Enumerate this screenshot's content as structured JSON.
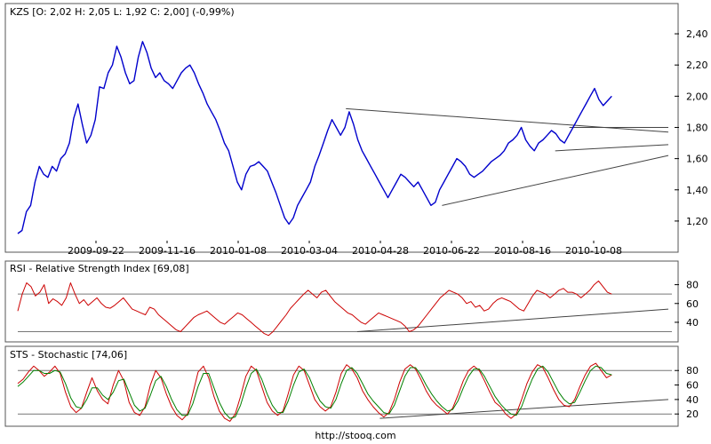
{
  "footer": "http://stooq.com",
  "chart_data": [
    {
      "type": "line",
      "title": "KZS [O: 2,02  H: 2,05  L: 1,92  C: 2,00] (-0,99%)",
      "ylim": [
        1.08,
        2.48
      ],
      "y_ticks": [
        "2,40",
        "2,20",
        "2,00",
        "1,80",
        "1,60",
        "1,40",
        "1,20"
      ],
      "y_tick_values": [
        2.4,
        2.2,
        2.0,
        1.8,
        1.6,
        1.4,
        1.2
      ],
      "x_ticks": [
        "2009-09-22",
        "2009-11-16",
        "2010-01-08",
        "2010-03-04",
        "2010-04-28",
        "2010-06-22",
        "2010-08-16",
        "2010-10-08"
      ],
      "x_tick_index": [
        25,
        45,
        65,
        85,
        105,
        125,
        145,
        165
      ],
      "series": [
        {
          "color": "#0000cc",
          "values": [
            1.12,
            1.14,
            1.26,
            1.3,
            1.45,
            1.55,
            1.5,
            1.48,
            1.55,
            1.52,
            1.6,
            1.63,
            1.7,
            1.86,
            1.95,
            1.82,
            1.7,
            1.75,
            1.85,
            2.06,
            2.05,
            2.15,
            2.2,
            2.32,
            2.25,
            2.15,
            2.08,
            2.1,
            2.25,
            2.35,
            2.28,
            2.18,
            2.12,
            2.15,
            2.1,
            2.08,
            2.05,
            2.1,
            2.15,
            2.18,
            2.2,
            2.15,
            2.08,
            2.02,
            1.95,
            1.9,
            1.85,
            1.78,
            1.7,
            1.65,
            1.55,
            1.45,
            1.4,
            1.5,
            1.55,
            1.56,
            1.58,
            1.55,
            1.52,
            1.45,
            1.38,
            1.3,
            1.22,
            1.18,
            1.22,
            1.3,
            1.35,
            1.4,
            1.45,
            1.55,
            1.62,
            1.7,
            1.78,
            1.85,
            1.8,
            1.75,
            1.8,
            1.9,
            1.82,
            1.72,
            1.65,
            1.6,
            1.55,
            1.5,
            1.45,
            1.4,
            1.35,
            1.4,
            1.45,
            1.5,
            1.48,
            1.45,
            1.42,
            1.45,
            1.4,
            1.35,
            1.3,
            1.32,
            1.4,
            1.45,
            1.5,
            1.55,
            1.6,
            1.58,
            1.55,
            1.5,
            1.48,
            1.5,
            1.52,
            1.55,
            1.58,
            1.6,
            1.62,
            1.65,
            1.7,
            1.72,
            1.75,
            1.8,
            1.72,
            1.68,
            1.65,
            1.7,
            1.72,
            1.75,
            1.78,
            1.76,
            1.72,
            1.7,
            1.75,
            1.8,
            1.85,
            1.9,
            1.95,
            2.0,
            2.05,
            1.98,
            1.94,
            1.97,
            2.0
          ]
        }
      ],
      "trend_lines": [
        {
          "from": [
            116,
            1.92
          ],
          "to": [
            230,
            1.77
          ]
        },
        {
          "from": [
            190,
            1.65
          ],
          "to": [
            230,
            1.69
          ]
        },
        {
          "from": [
            150,
            1.3
          ],
          "to": [
            230,
            1.62
          ]
        },
        {
          "from": [
            195,
            1.8
          ],
          "to": [
            230,
            1.8
          ]
        }
      ]
    },
    {
      "type": "line",
      "title": "RSI - Relative Strength Index [69,08]",
      "ylim": [
        22,
        90
      ],
      "y_ticks": [
        "80",
        "60",
        "40"
      ],
      "y_tick_values": [
        80,
        60,
        40
      ],
      "hlines": [
        70,
        30
      ],
      "series": [
        {
          "color": "#cc0000",
          "values": [
            52,
            70,
            82,
            78,
            68,
            72,
            80,
            60,
            65,
            62,
            58,
            66,
            82,
            70,
            60,
            64,
            58,
            62,
            66,
            60,
            56,
            55,
            58,
            62,
            66,
            60,
            54,
            52,
            50,
            48,
            56,
            54,
            48,
            44,
            40,
            36,
            32,
            30,
            35,
            40,
            45,
            48,
            50,
            52,
            48,
            44,
            40,
            38,
            42,
            46,
            50,
            48,
            44,
            40,
            36,
            32,
            28,
            26,
            30,
            36,
            42,
            48,
            55,
            60,
            65,
            70,
            74,
            70,
            66,
            72,
            74,
            68,
            62,
            58,
            54,
            50,
            48,
            44,
            40,
            38,
            42,
            46,
            50,
            48,
            46,
            44,
            42,
            40,
            36,
            30,
            32,
            36,
            42,
            48,
            54,
            60,
            66,
            70,
            74,
            72,
            70,
            66,
            60,
            62,
            56,
            58,
            52,
            54,
            60,
            64,
            66,
            64,
            62,
            58,
            54,
            52,
            60,
            68,
            74,
            72,
            70,
            66,
            70,
            74,
            76,
            72,
            72,
            70,
            66,
            70,
            74,
            80,
            84,
            78,
            72,
            70
          ]
        }
      ],
      "trend_lines": [
        {
          "from": [
            120,
            30
          ],
          "to": [
            230,
            54
          ]
        }
      ]
    },
    {
      "type": "line",
      "title": "STS - Stochastic [74,06]",
      "ylim": [
        8,
        95
      ],
      "y_ticks": [
        "80",
        "60",
        "40",
        "20"
      ],
      "y_tick_values": [
        80,
        60,
        40,
        20
      ],
      "hlines": [
        80,
        20
      ],
      "series": [
        {
          "color": "#cc0000",
          "values": [
            62,
            68,
            78,
            86,
            80,
            72,
            78,
            86,
            76,
            50,
            30,
            22,
            28,
            50,
            70,
            52,
            40,
            34,
            60,
            80,
            66,
            36,
            22,
            18,
            30,
            60,
            80,
            70,
            48,
            30,
            18,
            12,
            20,
            48,
            78,
            86,
            70,
            44,
            24,
            14,
            10,
            20,
            44,
            72,
            86,
            80,
            58,
            36,
            24,
            18,
            24,
            48,
            74,
            86,
            80,
            60,
            40,
            30,
            24,
            30,
            50,
            76,
            88,
            82,
            70,
            52,
            40,
            30,
            22,
            16,
            22,
            40,
            64,
            82,
            88,
            82,
            68,
            52,
            40,
            32,
            26,
            20,
            28,
            46,
            66,
            80,
            86,
            80,
            66,
            50,
            36,
            30,
            20,
            14,
            20,
            40,
            62,
            78,
            88,
            84,
            70,
            54,
            40,
            32,
            30,
            40,
            58,
            74,
            86,
            90,
            80,
            70,
            74
          ]
        },
        {
          "color": "#008000",
          "values": [
            58,
            64,
            72,
            80,
            80,
            76,
            76,
            80,
            78,
            62,
            42,
            30,
            28,
            40,
            56,
            56,
            46,
            40,
            50,
            66,
            68,
            50,
            32,
            24,
            28,
            46,
            66,
            72,
            58,
            40,
            26,
            18,
            18,
            34,
            58,
            76,
            76,
            56,
            36,
            22,
            14,
            16,
            32,
            56,
            76,
            82,
            68,
            48,
            32,
            22,
            22,
            38,
            60,
            78,
            82,
            70,
            52,
            38,
            30,
            28,
            40,
            62,
            80,
            84,
            76,
            62,
            48,
            38,
            30,
            22,
            20,
            32,
            52,
            72,
            84,
            84,
            74,
            60,
            48,
            38,
            30,
            24,
            26,
            38,
            56,
            72,
            82,
            82,
            72,
            58,
            44,
            34,
            26,
            20,
            18,
            30,
            50,
            68,
            82,
            86,
            78,
            64,
            50,
            40,
            34,
            36,
            50,
            66,
            80,
            86,
            84,
            76,
            74
          ]
        }
      ],
      "trend_lines": [
        {
          "from": [
            128,
            14
          ],
          "to": [
            230,
            40
          ]
        }
      ]
    }
  ]
}
